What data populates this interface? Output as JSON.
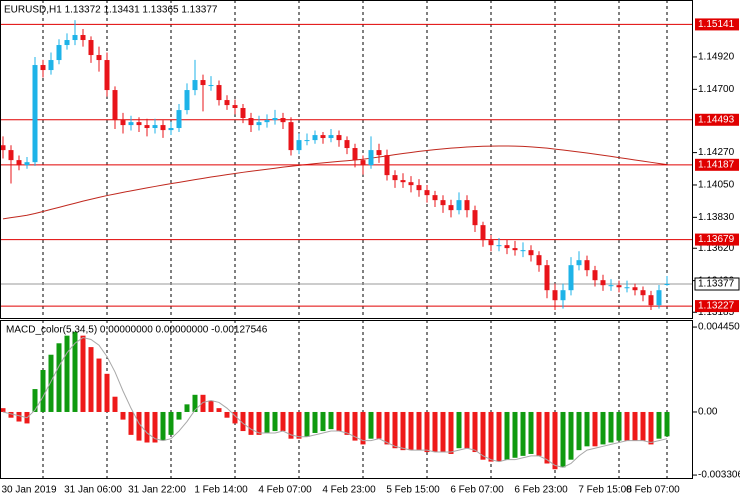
{
  "chart_data": [
    {
      "type": "candlestick",
      "title": "EURUSD,H1 1.13372 1.13431 1.13365 1.13377",
      "categories": [
        null,
        null,
        null,
        null,
        null,
        "30 Jan 2019",
        null,
        null,
        null,
        null,
        null,
        null,
        null,
        "31 Jan 06:00",
        null,
        null,
        null,
        null,
        null,
        null,
        null,
        "31 Jan 22:00",
        null,
        null,
        null,
        null,
        null,
        null,
        null,
        "1 Feb 14:00",
        null,
        null,
        null,
        null,
        null,
        null,
        null,
        "4 Feb 07:00",
        null,
        null,
        null,
        null,
        null,
        null,
        null,
        "4 Feb 23:00",
        null,
        null,
        null,
        null,
        null,
        null,
        null,
        "5 Feb 15:00",
        null,
        null,
        null,
        null,
        null,
        null,
        null,
        "6 Feb 07:00",
        null,
        null,
        null,
        null,
        null,
        null,
        null,
        "6 Feb 23:00",
        null,
        null,
        null,
        null,
        null,
        null,
        null,
        "7 Feb 15:00",
        null,
        null,
        null,
        null,
        null,
        "8 Feb 07:00"
      ],
      "open": [
        1.1432,
        1.14287,
        1.14219,
        1.14185,
        1.14205,
        1.14865,
        1.14831,
        1.14899,
        1.15001,
        1.15035,
        1.15069,
        1.15035,
        1.14933,
        1.14899,
        1.14695,
        1.14491,
        1.14457,
        1.14477,
        1.14457,
        1.14437,
        1.14457,
        1.14423,
        1.14437,
        1.14559,
        1.14695,
        1.14763,
        1.14729,
        1.14729,
        1.14627,
        1.14593,
        1.14573,
        1.14505,
        1.14457,
        1.14477,
        1.14491,
        1.14505,
        1.14477,
        1.14287,
        1.14355,
        1.14355,
        1.14389,
        1.14369,
        1.14389,
        1.14355,
        1.14301,
        1.14219,
        1.14185,
        1.14287,
        1.14253,
        1.14117,
        1.14083,
        1.14069,
        1.14049,
        1.14015,
        1.13981,
        1.13947,
        1.13913,
        1.13879,
        1.13947,
        1.13879,
        1.13777,
        1.13675,
        1.13641,
        1.13641,
        1.13621,
        1.13607,
        1.13607,
        1.13573,
        1.13505,
        1.13335,
        1.13267,
        1.13335,
        1.13505,
        1.13539,
        1.13471,
        1.13403,
        1.13369,
        1.13369,
        1.13355,
        1.13355,
        1.13335,
        1.13301,
        1.13233,
        1.13372
      ],
      "high": [
        1.1438,
        1.1432,
        1.1425,
        1.1424,
        1.1492,
        1.149,
        1.1495,
        1.1504,
        1.1508,
        1.1517,
        1.1511,
        1.1506,
        1.1499,
        1.1495,
        1.1472,
        1.1454,
        1.1452,
        1.1451,
        1.145,
        1.145,
        1.1449,
        1.1448,
        1.146,
        1.1474,
        1.149,
        1.148,
        1.1479,
        1.1476,
        1.1466,
        1.1463,
        1.146,
        1.1454,
        1.1452,
        1.1453,
        1.1456,
        1.1454,
        1.1451,
        1.144,
        1.144,
        1.1442,
        1.1441,
        1.1443,
        1.1442,
        1.1438,
        1.1433,
        1.1425,
        1.1438,
        1.1433,
        1.1429,
        1.1415,
        1.1413,
        1.1411,
        1.1409,
        1.1405,
        1.1401,
        1.1398,
        1.1395,
        1.14,
        1.1398,
        1.1391,
        1.138,
        1.1371,
        1.1369,
        1.1368,
        1.1367,
        1.1366,
        1.1364,
        1.136,
        1.1354,
        1.1338,
        1.1338,
        1.1356,
        1.136,
        1.1357,
        1.135,
        1.1344,
        1.1341,
        1.134,
        1.134,
        1.1338,
        1.1336,
        1.1333,
        1.1337,
        1.13431
      ],
      "low": [
        1.1423,
        1.1406,
        1.1415,
        1.1416,
        1.1418,
        1.1478,
        1.148,
        1.1487,
        1.1497,
        1.15,
        1.1499,
        1.1488,
        1.1482,
        1.1465,
        1.1443,
        1.144,
        1.1442,
        1.1441,
        1.1438,
        1.144,
        1.1437,
        1.1439,
        1.1441,
        1.1453,
        1.1466,
        1.1455,
        1.1469,
        1.1459,
        1.1456,
        1.1453,
        1.1447,
        1.1441,
        1.1442,
        1.1444,
        1.1446,
        1.1443,
        1.1425,
        1.1426,
        1.1432,
        1.1433,
        1.1433,
        1.1434,
        1.1431,
        1.1426,
        1.1417,
        1.1412,
        1.1416,
        1.142,
        1.1408,
        1.1403,
        1.1403,
        1.14,
        1.1397,
        1.1393,
        1.139,
        1.1386,
        1.1383,
        1.1385,
        1.1383,
        1.1373,
        1.1363,
        1.136,
        1.136,
        1.1358,
        1.1357,
        1.1356,
        1.1353,
        1.1346,
        1.1328,
        1.132,
        1.1321,
        1.133,
        1.1347,
        1.1343,
        1.1336,
        1.1333,
        1.1333,
        1.1332,
        1.1332,
        1.133,
        1.1326,
        1.132,
        1.1321,
        1.13365
      ],
      "close": [
        1.14287,
        1.14219,
        1.14185,
        1.14205,
        1.14865,
        1.14831,
        1.14899,
        1.15001,
        1.15035,
        1.15069,
        1.15035,
        1.14933,
        1.14899,
        1.14695,
        1.14491,
        1.14457,
        1.14477,
        1.14457,
        1.14437,
        1.14457,
        1.14423,
        1.14437,
        1.14559,
        1.14695,
        1.14763,
        1.14729,
        1.14729,
        1.14627,
        1.14593,
        1.14573,
        1.14505,
        1.14457,
        1.14477,
        1.14491,
        1.14505,
        1.14477,
        1.14287,
        1.14355,
        1.14355,
        1.14389,
        1.14369,
        1.14389,
        1.14355,
        1.14301,
        1.14219,
        1.14185,
        1.14287,
        1.14253,
        1.14117,
        1.14083,
        1.14069,
        1.14049,
        1.14015,
        1.13981,
        1.13947,
        1.13913,
        1.13879,
        1.13947,
        1.13879,
        1.13777,
        1.13675,
        1.13641,
        1.13641,
        1.13621,
        1.13607,
        1.13607,
        1.13573,
        1.13505,
        1.13335,
        1.13267,
        1.13335,
        1.13505,
        1.13539,
        1.13471,
        1.13403,
        1.13369,
        1.13369,
        1.13355,
        1.13355,
        1.13335,
        1.13301,
        1.13233,
        1.13335,
        1.13377
      ],
      "up_color": "#1eb3e8",
      "down_color": "#e8141a",
      "ma_values": [
        1.1382,
        1.13828,
        1.13836,
        1.13844,
        1.13856,
        1.1387,
        1.13884,
        1.13898,
        1.13912,
        1.13926,
        1.1394,
        1.13953,
        1.13966,
        1.13978,
        1.13989,
        1.14,
        1.1401,
        1.1402,
        1.1403,
        1.1404,
        1.1405,
        1.14059,
        1.14068,
        1.14077,
        1.14086,
        1.14095,
        1.14104,
        1.14112,
        1.1412,
        1.14128,
        1.14136,
        1.14143,
        1.1415,
        1.14157,
        1.14164,
        1.14171,
        1.14177,
        1.14183,
        1.14189,
        1.14195,
        1.142,
        1.14205,
        1.1421,
        1.14215,
        1.1422,
        1.14225,
        1.14232,
        1.1424,
        1.14248,
        1.14256,
        1.14264,
        1.14271,
        1.14278,
        1.14284,
        1.1429,
        1.14295,
        1.143,
        1.14304,
        1.14308,
        1.14311,
        1.14313,
        1.14314,
        1.14315,
        1.14315,
        1.14314,
        1.14312,
        1.14309,
        1.14305,
        1.143,
        1.14294,
        1.14288,
        1.14281,
        1.14274,
        1.14267,
        1.1426,
        1.14252,
        1.14244,
        1.14236,
        1.14228,
        1.1422,
        1.14212,
        1.14204,
        1.14196,
        1.14188
      ],
      "ma_color": "#c0281e",
      "ylim": [
        1.13146,
        1.15307
      ],
      "yticks": [
        {
          "value": 1.1492,
          "label": "1.14920"
        },
        {
          "value": 1.147,
          "label": "1.14700"
        },
        {
          "value": 1.1427,
          "label": "1.14270"
        },
        {
          "value": 1.1405,
          "label": "1.14050"
        },
        {
          "value": 1.1383,
          "label": "1.13830"
        },
        {
          "value": 1.1362,
          "label": "1.13620"
        },
        {
          "value": 1.134,
          "label": "1.13400"
        },
        1.13185
      ],
      "hlines": [
        1.15141,
        1.14493,
        1.14187,
        1.13679,
        1.13227
      ],
      "hline_color": "#e00000",
      "current_price": 1.13377,
      "grid": true
    },
    {
      "type": "macd",
      "title": "MACD_color(5,34,5) 0.00000000 0.00000000 -0.00127546",
      "values": [
        0.0002,
        -0.0003,
        -0.0005,
        -0.0006,
        0.0012,
        0.0022,
        0.003,
        0.0036,
        0.004,
        0.0042,
        0.004,
        0.0034,
        0.0028,
        0.002,
        0.0008,
        -0.0004,
        -0.0012,
        -0.0015,
        -0.0016,
        -0.0016,
        -0.0015,
        -0.0012,
        -0.0004,
        0.0004,
        0.0009,
        0.0009,
        0.0006,
        0.0002,
        -0.0003,
        -0.0006,
        -0.001,
        -0.0012,
        -0.0012,
        -0.0011,
        -0.001,
        -0.001,
        -0.0014,
        -0.0014,
        -0.0013,
        -0.0011,
        -0.001,
        -0.0009,
        -0.001,
        -0.0012,
        -0.0015,
        -0.0017,
        -0.0014,
        -0.0014,
        -0.0017,
        -0.0019,
        -0.002,
        -0.002,
        -0.002,
        -0.0021,
        -0.0021,
        -0.0021,
        -0.0022,
        -0.0019,
        -0.0019,
        -0.0021,
        -0.0025,
        -0.0026,
        -0.0026,
        -0.0025,
        -0.0024,
        -0.0023,
        -0.0022,
        -0.0023,
        -0.0027,
        -0.003,
        -0.0029,
        -0.0025,
        -0.002,
        -0.0018,
        -0.0018,
        -0.0017,
        -0.0016,
        -0.0015,
        -0.0015,
        -0.0015,
        -0.0015,
        -0.0017,
        -0.0014,
        -0.00127546
      ],
      "signal": [
        0,
        -0.0001,
        -0.0002,
        -0.0003,
        0.0001,
        0.0008,
        0.0016,
        0.0024,
        0.0031,
        0.0036,
        0.0039,
        0.0038,
        0.0035,
        0.0029,
        0.0021,
        0.0011,
        0.0002,
        -0.0006,
        -0.0011,
        -0.0014,
        -0.0015,
        -0.0014,
        -0.001,
        -0.0005,
        0.0001,
        0.0005,
        0.0006,
        0.0005,
        0.0002,
        -0.0002,
        -0.0006,
        -0.0009,
        -0.0011,
        -0.0011,
        -0.0011,
        -0.001,
        -0.0012,
        -0.0013,
        -0.0013,
        -0.0012,
        -0.0011,
        -0.001,
        -0.001,
        -0.0011,
        -0.0013,
        -0.0015,
        -0.0015,
        -0.0014,
        -0.0016,
        -0.0018,
        -0.0019,
        -0.002,
        -0.002,
        -0.002,
        -0.0021,
        -0.0021,
        -0.0021,
        -0.002,
        -0.0019,
        -0.002,
        -0.0023,
        -0.0025,
        -0.0026,
        -0.0025,
        -0.0025,
        -0.0024,
        -0.0023,
        -0.0023,
        -0.0025,
        -0.0028,
        -0.0029,
        -0.0027,
        -0.0023,
        -0.002,
        -0.0019,
        -0.0018,
        -0.0017,
        -0.0016,
        -0.0015,
        -0.0015,
        -0.0015,
        -0.0016,
        -0.0015,
        -0.0014
      ],
      "up_color": "#0f9a0f",
      "down_color": "#ee1a1a",
      "signal_color": "#a8a8a8",
      "ylim": [
        -0.00346,
        0.00482
      ],
      "yticks": [
        0.0044501,
        {
          "value": 0,
          "label": "0.00"
        },
        -0.003306
      ]
    }
  ]
}
